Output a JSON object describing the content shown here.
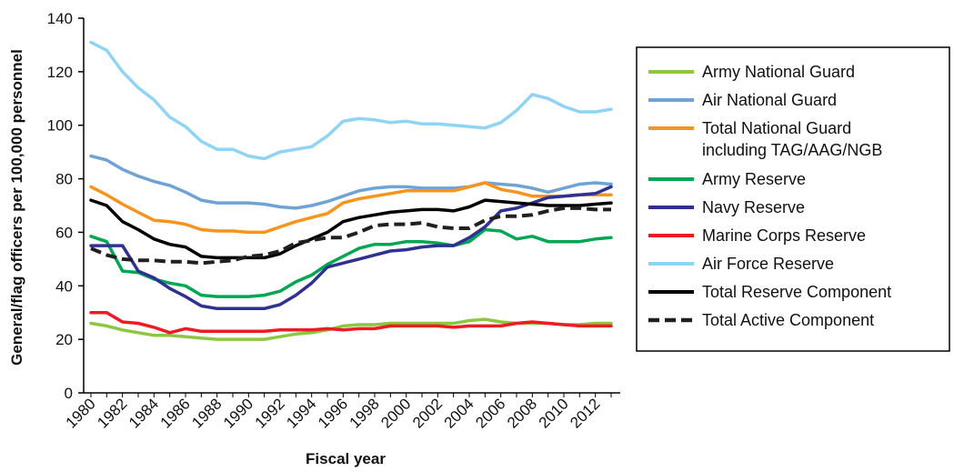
{
  "chart_data": {
    "type": "line",
    "title": "",
    "xlabel": "Fiscal year",
    "ylabel": "General/flag officers per 100,000 personnel",
    "xlim": [
      1980,
      2013
    ],
    "ylim": [
      0,
      140
    ],
    "yticks": [
      0,
      20,
      40,
      60,
      80,
      100,
      120,
      140
    ],
    "xtick_labels": [
      "1980",
      "1982",
      "1984",
      "1986",
      "1988",
      "1990",
      "1992",
      "1994",
      "1996",
      "1998",
      "2000",
      "2002",
      "2004",
      "2006",
      "2008",
      "2010",
      "2012"
    ],
    "x": [
      1980,
      1981,
      1982,
      1983,
      1984,
      1985,
      1986,
      1987,
      1988,
      1989,
      1990,
      1991,
      1992,
      1993,
      1994,
      1995,
      1996,
      1997,
      1998,
      1999,
      2000,
      2001,
      2002,
      2003,
      2004,
      2005,
      2006,
      2007,
      2008,
      2009,
      2010,
      2011,
      2012,
      2013
    ],
    "grid": false,
    "legend_position": "right",
    "series": [
      {
        "name": "Army National Guard",
        "color": "#8dc63f",
        "dash": false,
        "values": [
          26,
          25,
          23.5,
          22.5,
          21.5,
          21.5,
          21,
          20.5,
          20,
          20,
          20,
          20,
          21,
          22,
          22.5,
          23.5,
          25,
          25.5,
          25.5,
          26,
          26,
          26,
          26,
          26,
          27,
          27.5,
          26.5,
          26,
          26,
          26,
          25.5,
          25.5,
          26,
          26
        ]
      },
      {
        "name": "Air National Guard",
        "color": "#6fa3d6",
        "dash": false,
        "values": [
          88.5,
          87,
          83.5,
          81,
          79,
          77.5,
          75,
          72,
          71,
          71,
          71,
          70.5,
          69.5,
          69,
          70,
          71.5,
          73.5,
          75.5,
          76.5,
          77,
          77,
          76.5,
          76.5,
          76.5,
          77,
          78.5,
          78,
          77.5,
          76.5,
          75,
          76.5,
          78,
          78.5,
          78
        ]
      },
      {
        "name": "Total National Guard including TAG/AAG/NGB",
        "color": "#f7941d",
        "dash": false,
        "values": [
          77,
          74,
          70.5,
          67.5,
          64.5,
          64,
          63,
          61,
          60.5,
          60.5,
          60,
          60,
          62,
          64,
          65.5,
          67,
          71,
          72.5,
          73.5,
          74.5,
          75.5,
          75.5,
          75.5,
          75.5,
          77,
          78.5,
          76,
          75,
          73.5,
          73.5,
          73.5,
          74,
          74,
          74
        ]
      },
      {
        "name": "Army Reserve",
        "color": "#00a651",
        "dash": false,
        "values": [
          58.5,
          56.5,
          45.5,
          45,
          42.5,
          41,
          40,
          36.5,
          36,
          36,
          36,
          36.5,
          38,
          41.5,
          44,
          48,
          51,
          54,
          55.5,
          55.5,
          56.5,
          56.5,
          56,
          55,
          56.5,
          61,
          60.5,
          57.5,
          58.5,
          56.5,
          56.5,
          56.5,
          57.5,
          58
        ]
      },
      {
        "name": "Navy Reserve",
        "color": "#2e3192",
        "dash": false,
        "values": [
          55,
          55,
          55,
          45.5,
          43,
          39,
          36,
          32.5,
          31.5,
          31.5,
          31.5,
          31.5,
          33,
          36.5,
          41,
          47,
          48.5,
          50,
          51.5,
          53,
          53.5,
          54.5,
          55,
          55,
          58,
          62,
          68,
          69,
          71,
          73,
          73.5,
          74,
          74.5,
          77
        ]
      },
      {
        "name": "Marine Corps Reserve",
        "color": "#ed1c24",
        "dash": false,
        "values": [
          30,
          30,
          26.5,
          26,
          24.5,
          22.5,
          24,
          23,
          23,
          23,
          23,
          23,
          23.5,
          23.5,
          23.5,
          24,
          23.5,
          24,
          24,
          25,
          25,
          25,
          25,
          24.5,
          25,
          25,
          25,
          26,
          26.5,
          26,
          25.5,
          25,
          25,
          25
        ]
      },
      {
        "name": "Air Force Reserve",
        "color": "#8fd4f5",
        "dash": false,
        "values": [
          131,
          128,
          120,
          114,
          109.5,
          103,
          99.5,
          94,
          91,
          91,
          88.5,
          87.5,
          90,
          91,
          92,
          96,
          101.5,
          102.5,
          102,
          101,
          101.5,
          100.5,
          100.5,
          100,
          99.5,
          99,
          101,
          105.5,
          111.5,
          110,
          107,
          105,
          105,
          106
        ]
      },
      {
        "name": "Total Reserve Component",
        "color": "#000000",
        "dash": false,
        "values": [
          72,
          70,
          64,
          61,
          57.5,
          55.5,
          54.5,
          51,
          50.5,
          50.5,
          50.5,
          50.5,
          52,
          55,
          57.5,
          60,
          64,
          65.5,
          66.5,
          67.5,
          68,
          68.5,
          68.5,
          68,
          69.5,
          72,
          71.5,
          71,
          70.5,
          70,
          70,
          70,
          70.5,
          71
        ]
      },
      {
        "name": "Total Active Component",
        "color": "#231f20",
        "dash": true,
        "values": [
          54,
          51.5,
          50,
          49.5,
          49.5,
          49,
          49,
          48.5,
          49,
          49.5,
          51,
          51.5,
          53,
          56,
          57,
          58,
          58,
          60,
          62.5,
          63,
          63,
          63.5,
          62,
          61.5,
          61.5,
          64.5,
          66,
          66,
          66.5,
          68,
          69,
          69,
          68.5,
          68.5
        ]
      }
    ]
  }
}
